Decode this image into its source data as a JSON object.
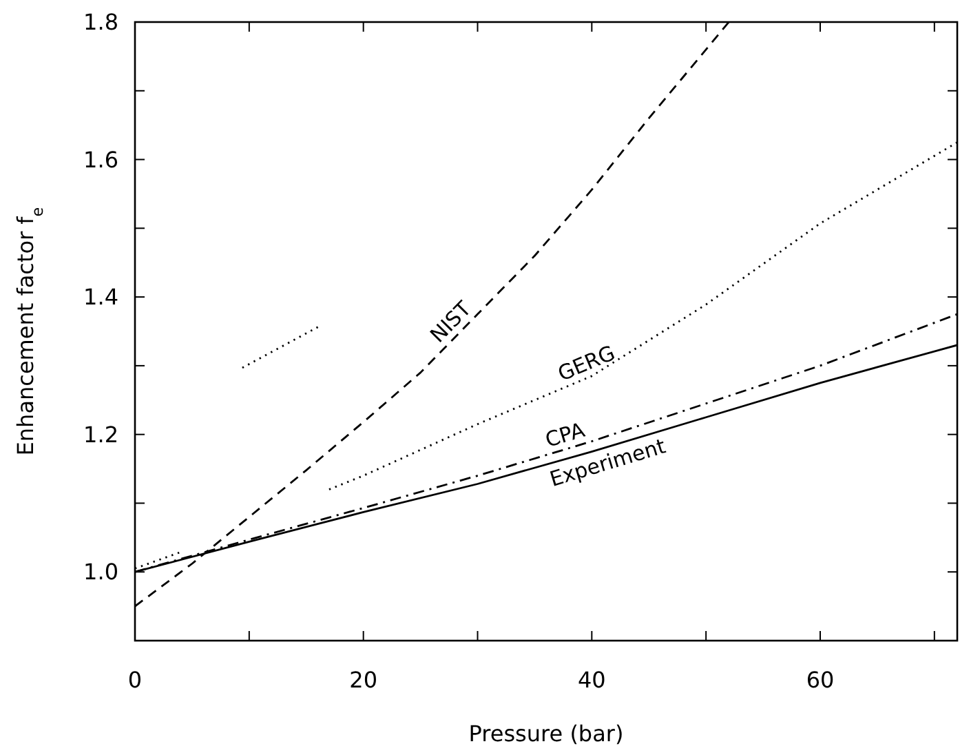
{
  "chart_data": {
    "type": "line",
    "xlabel": "Pressure (bar)",
    "ylabel": "Enhancement factor f$_{e}$",
    "xlim": [
      0,
      72
    ],
    "ylim": [
      0.9,
      1.8
    ],
    "xticks": [
      0,
      {
        "value": 10,
        "label": null
      },
      20,
      {
        "value": 30,
        "label": null
      },
      40,
      {
        "value": 50,
        "label": null
      },
      60,
      {
        "value": 70,
        "label": null
      }
    ],
    "yticks": [
      {
        "value": 1,
        "label": "1.0"
      },
      {
        "value": 1.1,
        "label": null
      },
      {
        "value": 1.2,
        "label": "1.2"
      },
      {
        "value": 1.3,
        "label": null
      },
      {
        "value": 1.4,
        "label": "1.4"
      },
      {
        "value": 1.5,
        "label": null
      },
      {
        "value": 1.6,
        "label": "1.6"
      },
      {
        "value": 1.7,
        "label": null
      },
      {
        "value": 1.8,
        "label": "1.8"
      }
    ],
    "grid": false,
    "marker": "none",
    "series": [
      {
        "name": "NIST",
        "color": "#000000",
        "line_style": "dashed",
        "x": [
          0,
          5,
          10,
          15,
          20,
          25,
          30,
          35,
          40,
          45,
          52
        ],
        "values": [
          0.95,
          1.012,
          1.08,
          1.148,
          1.218,
          1.29,
          1.375,
          1.46,
          1.556,
          1.66,
          1.8
        ]
      },
      {
        "name": "GERG",
        "color": "#000000",
        "line_style": "dotted",
        "x": [
          0,
          4.2,
          4.3,
          17,
          20,
          30,
          40,
          50,
          60,
          72
        ],
        "values": [
          1.005,
          1.03,
          null,
          1.12,
          1.14,
          1.215,
          1.285,
          1.389,
          1.507,
          1.625
        ]
      },
      {
        "color": "#000000",
        "line_style": "dotted",
        "x": [
          9.4,
          16.1
        ],
        "values": [
          1.297,
          1.357
        ]
      },
      {
        "name": "CPA",
        "color": "#000000",
        "line_style": "dashdot",
        "x": [
          0,
          10,
          20,
          30,
          40,
          50,
          60,
          72
        ],
        "values": [
          1.0,
          1.047,
          1.093,
          1.14,
          1.19,
          1.245,
          1.3,
          1.375
        ]
      },
      {
        "name": "Experiment",
        "color": "#000000",
        "line_style": "solid",
        "x": [
          0,
          10,
          20,
          30,
          40,
          50,
          60,
          72
        ],
        "values": [
          1.0,
          1.044,
          1.087,
          1.128,
          1.175,
          1.225,
          1.275,
          1.33
        ]
      }
    ]
  }
}
